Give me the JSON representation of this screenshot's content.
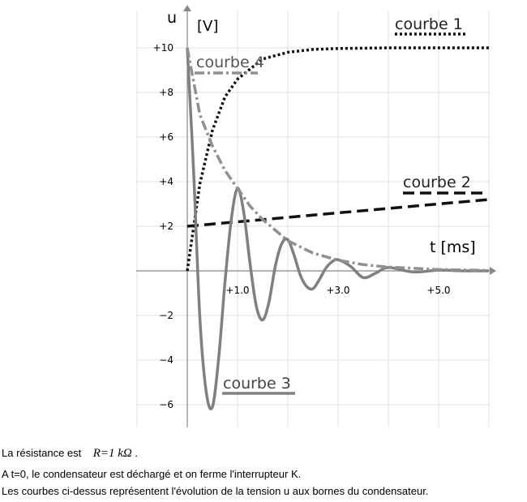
{
  "chart_data": {
    "type": "line",
    "title": "",
    "ylabel": "u",
    "yunit": "[V]",
    "xlabel": "t [ms]",
    "xlim": [
      0,
      6.0
    ],
    "ylim": [
      -6.5,
      11
    ],
    "grid": true,
    "x_ticks": [
      {
        "value": 1.0,
        "label": "+1.0"
      },
      {
        "value": 3.0,
        "label": "+3.0"
      },
      {
        "value": 5.0,
        "label": "+5.0"
      }
    ],
    "y_ticks": [
      {
        "value": 10,
        "label": "+10"
      },
      {
        "value": 8,
        "label": "+8"
      },
      {
        "value": 6,
        "label": "+6"
      },
      {
        "value": 4,
        "label": "+4"
      },
      {
        "value": 2,
        "label": "+2"
      },
      {
        "value": -2,
        "label": "−2"
      },
      {
        "value": -4,
        "label": "−4"
      },
      {
        "value": -6,
        "label": "−6"
      }
    ],
    "series": [
      {
        "name": "courbe 1",
        "color": "#111111",
        "style": "dotted",
        "x": [
          0,
          0.25,
          0.5,
          0.75,
          1.0,
          1.5,
          2.0,
          2.5,
          3.0,
          4.0,
          5.0,
          6.0
        ],
        "y": [
          0,
          3.9,
          6.3,
          7.8,
          8.6,
          9.5,
          9.8,
          9.93,
          9.97,
          10.0,
          10.0,
          10.0
        ]
      },
      {
        "name": "courbe 2",
        "color": "#111111",
        "style": "dashed",
        "x": [
          0,
          6.0
        ],
        "y": [
          2.0,
          3.2
        ]
      },
      {
        "name": "courbe 3",
        "color": "#808080",
        "style": "solid",
        "x": [
          0,
          0.125,
          0.25,
          0.375,
          0.5,
          0.625,
          0.75,
          0.875,
          1.0,
          1.125,
          1.25,
          1.375,
          1.5,
          1.625,
          1.75,
          1.875,
          2.0,
          2.125,
          2.25,
          2.375,
          2.5,
          2.625,
          2.75,
          2.875,
          3.0,
          3.25,
          3.5,
          3.75,
          4.0,
          4.5,
          5.0,
          5.5,
          6.0
        ],
        "y": [
          10.0,
          4.5,
          -2.1,
          -5.4,
          -6.1,
          -3.9,
          -0.5,
          2.3,
          3.7,
          2.6,
          0.3,
          -1.6,
          -2.2,
          -1.4,
          0.2,
          1.2,
          1.4,
          0.7,
          -0.2,
          -0.7,
          -0.8,
          -0.4,
          0.1,
          0.4,
          0.5,
          0.2,
          -0.3,
          -0.1,
          0.15,
          -0.05,
          0.03,
          0.0,
          0.0
        ]
      },
      {
        "name": "courbe 4",
        "color": "#909090",
        "style": "dashdot",
        "x": [
          0,
          0.25,
          0.5,
          0.75,
          1.0,
          1.25,
          1.5,
          2.0,
          2.5,
          3.0,
          3.5,
          4.0,
          5.0,
          6.0
        ],
        "y": [
          10.0,
          7.0,
          5.6,
          4.5,
          3.7,
          2.9,
          2.3,
          1.35,
          0.8,
          0.48,
          0.28,
          0.17,
          0.06,
          0.02
        ]
      }
    ]
  },
  "caption": {
    "line1_prefix": "La résistance est",
    "line1_formula": "R=1 kΩ",
    "line1_suffix": " .",
    "line2": "A t=0, le condensateur est déchargé et on ferme l'interrupteur K.",
    "line3": "Les courbes ci-dessus représentent l'évolution de la tension u aux bornes du condensateur."
  }
}
